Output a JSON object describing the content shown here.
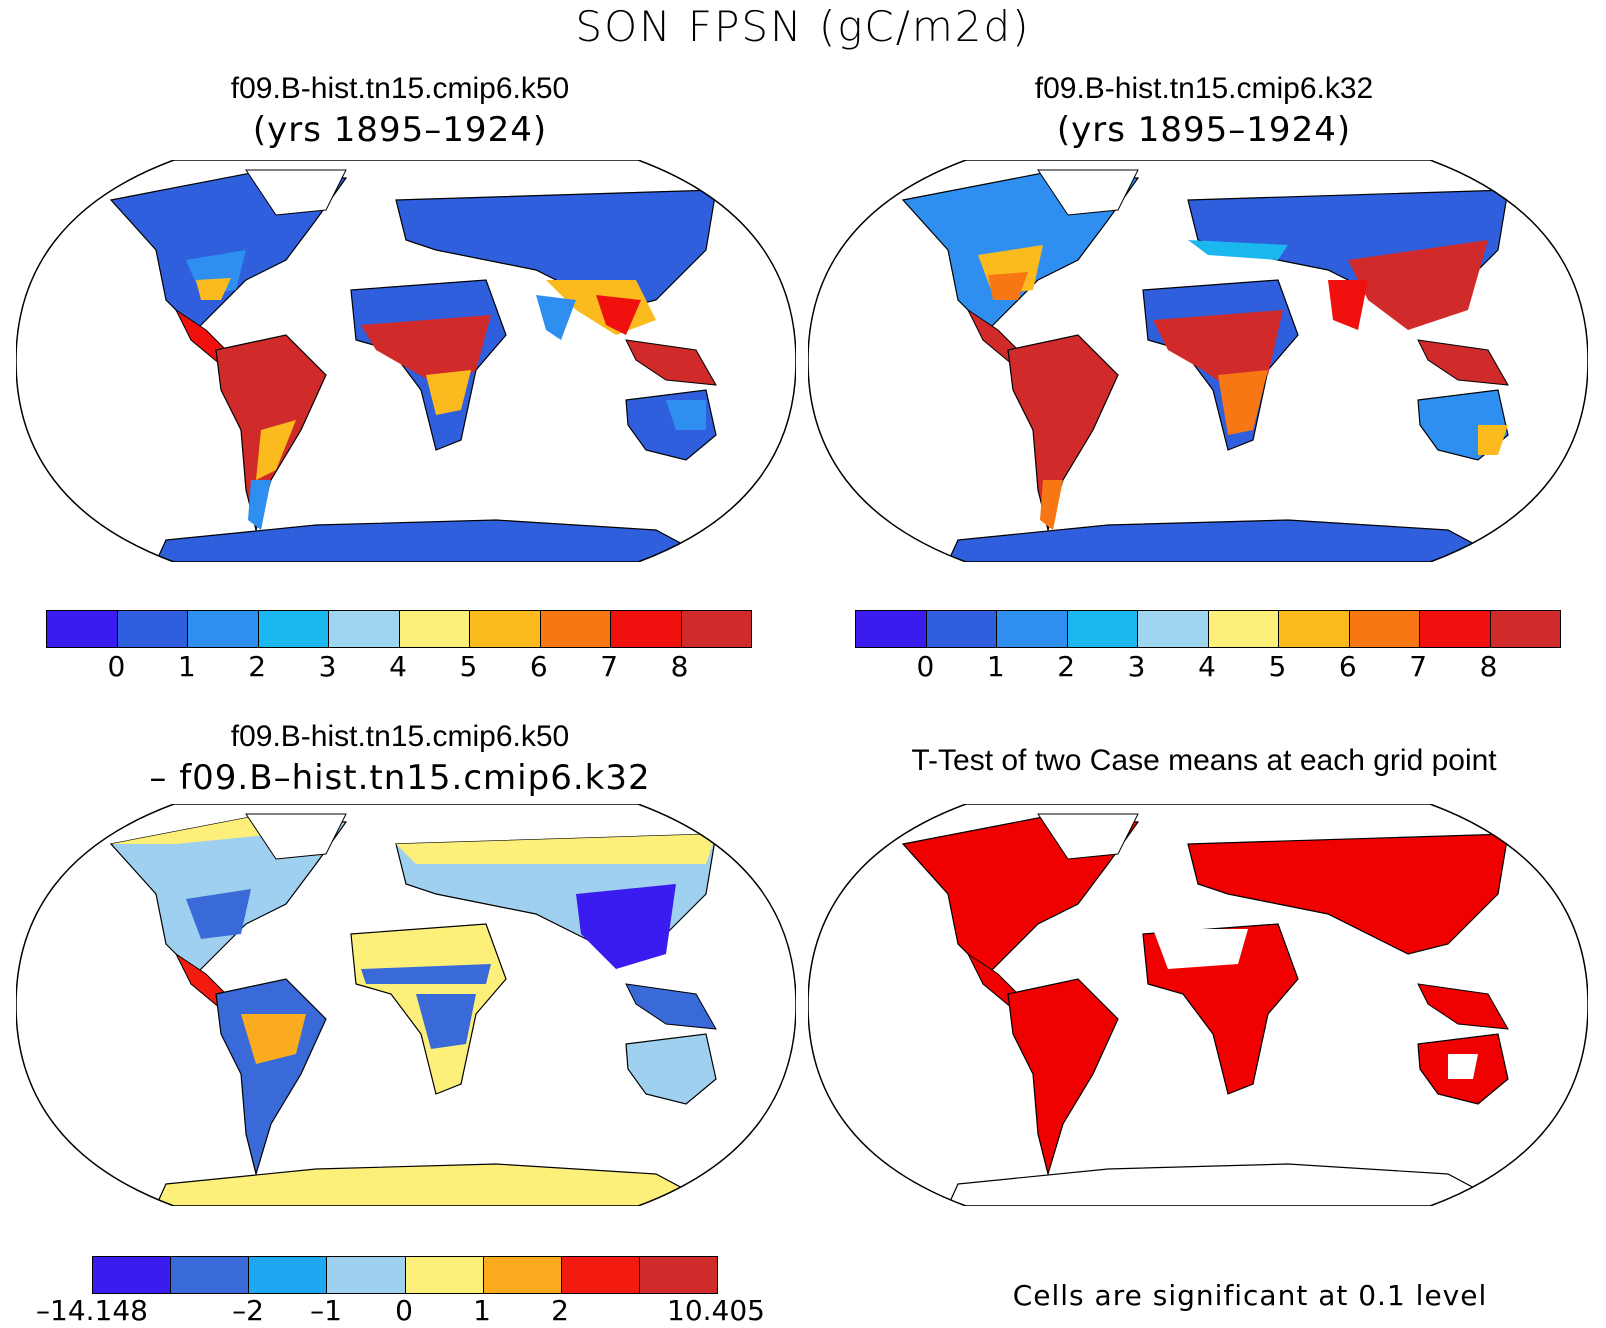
{
  "title": "SON FPSN (gC/m2d)",
  "panels": {
    "top_left": {
      "title": "f09.B-hist.tn15.cmip6.k50",
      "subtitle": "(yrs 1895–1924)"
    },
    "top_right": {
      "title": "f09.B-hist.tn15.cmip6.k32",
      "subtitle": "(yrs 1895–1924)"
    },
    "bottom_left": {
      "title": "f09.B-hist.tn15.cmip6.k50",
      "subtitle": "– f09.B–hist.tn15.cmip6.k32"
    },
    "bottom_right": {
      "title": "T-Test of two Case means at each grid point",
      "note": "Cells are significant at 0.1 level"
    }
  },
  "colorbar_abs": {
    "colors": [
      "#3a1cf0",
      "#2f5fdc",
      "#2f8ff0",
      "#1bb8f0",
      "#9fd6ef",
      "#fdf07a",
      "#fbbb1e",
      "#f77715",
      "#f0110f",
      "#d12a2a"
    ],
    "ticks": [
      "0",
      "1",
      "2",
      "3",
      "4",
      "5",
      "6",
      "7",
      "8"
    ]
  },
  "colorbar_diff": {
    "colors": [
      "#3a1cf0",
      "#3a6ad8",
      "#1ea8f2",
      "#9fd0ef",
      "#fdf07a",
      "#fbab1e",
      "#f31a0f",
      "#d12a2a"
    ],
    "ticks": [
      "–14.148",
      "–2",
      "–1",
      "0",
      "1",
      "2",
      "10.405"
    ]
  },
  "significance_color": "#f00000"
}
